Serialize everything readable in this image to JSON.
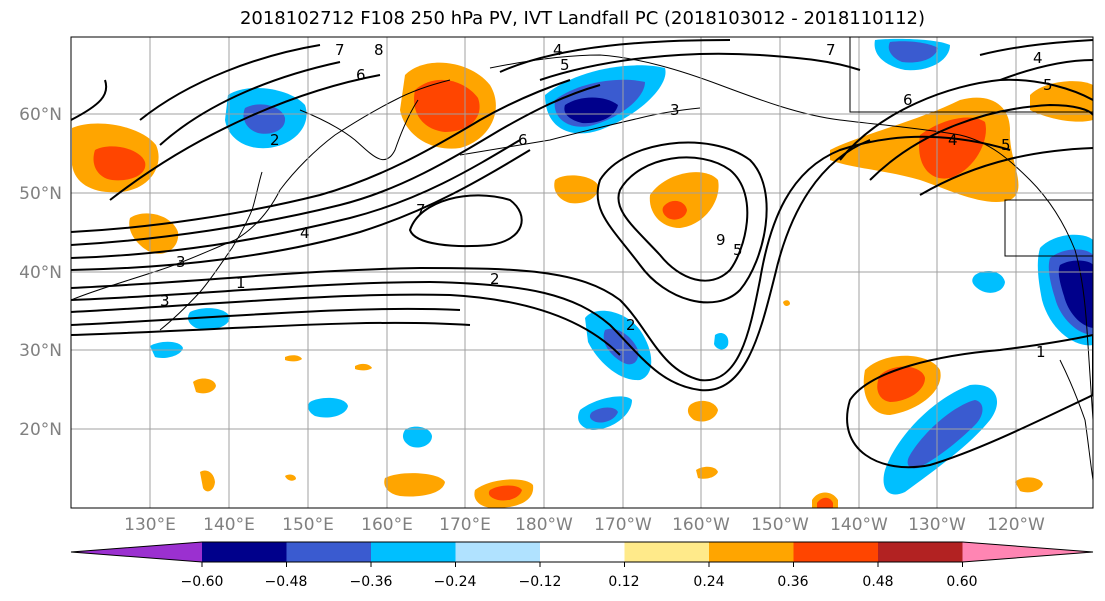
{
  "title": "2018102712 F108 250 hPa PV, IVT Landfall PC (2018103012 - 2018110112)",
  "lat_labels": [
    "60°N",
    "50°N",
    "40°N",
    "30°N",
    "20°N"
  ],
  "lon_labels": [
    "130°E",
    "140°E",
    "150°E",
    "160°E",
    "170°E",
    "180°W",
    "170°W",
    "160°W",
    "150°W",
    "140°W",
    "130°W",
    "120°W"
  ],
  "colorbar": {
    "colors": [
      "#9b30d0",
      "#00008b",
      "#3a5bd0",
      "#00bfff",
      "#b0e2ff",
      "#ffffff",
      "#ffea8a",
      "#ffa500",
      "#ff4500",
      "#b22222",
      "#ff85b3"
    ],
    "tick_labels": [
      "−0.60",
      "−0.48",
      "−0.36",
      "−0.24",
      "−0.12",
      "0.12",
      "0.24",
      "0.36",
      "0.48",
      "0.60"
    ]
  },
  "contour_labels": [
    "7",
    "8",
    "6",
    "2",
    "4",
    "3",
    "7",
    "2",
    "6",
    "5",
    "4",
    "3",
    "5",
    "9",
    "2",
    "1",
    "7",
    "6",
    "4",
    "5",
    "4",
    "5",
    "1",
    "3"
  ],
  "colors": {
    "ocean": "#ffffff",
    "grid": "#a0a0a0",
    "contour": "#000000"
  }
}
